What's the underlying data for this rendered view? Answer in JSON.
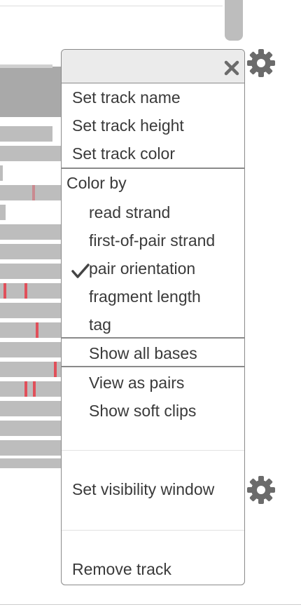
{
  "menu": {
    "close_icon": "close-icon",
    "items": [
      {
        "label": "Set track name"
      },
      {
        "label": "Set track height"
      },
      {
        "label": "Set track color"
      }
    ],
    "color_by": {
      "heading": "Color by",
      "options": [
        {
          "label": "read strand",
          "checked": false
        },
        {
          "label": "first-of-pair strand",
          "checked": false
        },
        {
          "label": "pair orientation",
          "checked": true
        },
        {
          "label": "fragment length",
          "checked": false
        },
        {
          "label": "tag",
          "checked": false
        }
      ]
    },
    "show_all_bases": "Show all bases",
    "view_as_pairs": "View as pairs",
    "show_soft_clips": "Show soft clips",
    "set_visibility_window": "Set visibility window",
    "remove_track": "Remove track"
  },
  "colors": {
    "read_gray": "#bdbdbd",
    "mismatch_red": "#e0505a",
    "menu_border": "#8a8a8a",
    "header_bg": "#ebebeb",
    "gear_gray": "#6b6b6b"
  }
}
